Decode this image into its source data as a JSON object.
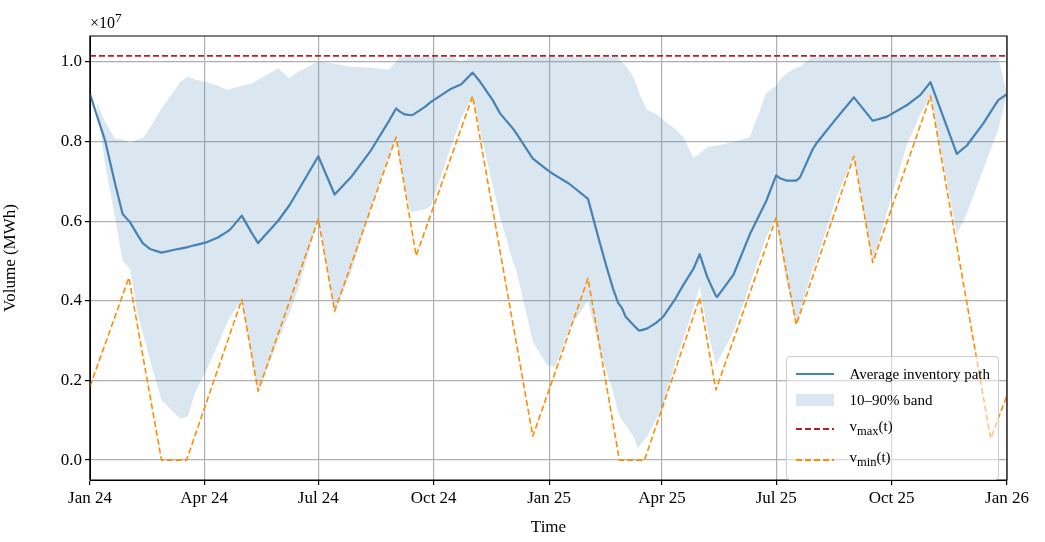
{
  "chart_data": {
    "type": "line",
    "xlabel": "Time",
    "ylabel": "Volume (MWh)",
    "annotations": [
      "×10$^{7}$",
      "10–90% band"
    ],
    "xlim": [
      "2024-01-01",
      "2026-01-01"
    ],
    "xticks": [
      {
        "value": "2024-01-01",
        "label": "Jan 24"
      },
      {
        "value": "2024-04-01",
        "label": "Apr 24"
      },
      {
        "value": "2024-07-01",
        "label": "Jul 24"
      },
      {
        "value": "2024-10-01",
        "label": "Oct 24"
      },
      {
        "value": "2025-01-01",
        "label": "Jan 25"
      },
      {
        "value": "2025-04-01",
        "label": "Apr 25"
      },
      {
        "value": "2025-07-01",
        "label": "Jul 25"
      },
      {
        "value": "2025-10-01",
        "label": "Oct 25"
      },
      {
        "value": "2026-01-01",
        "label": "Jan 26"
      }
    ],
    "ylim": [
      -0.05,
      1.065
    ],
    "yticks": [
      {
        "value": 0,
        "label": "0.0"
      },
      0.2,
      0.4,
      0.6,
      0.8,
      {
        "value": 1,
        "label": "1.0"
      }
    ],
    "grid": true,
    "legend": "bottom right",
    "marker": "none",
    "series": [
      {
        "name": "Average inventory path",
        "color": "#4682b4",
        "line_style": "solid",
        "x": [
          "2024-01-01",
          "2024-01-06",
          "2024-01-13",
          "2024-01-21",
          "2024-01-27",
          "2024-02-02",
          "2024-02-08",
          "2024-02-10",
          "2024-02-12",
          "2024-02-18",
          "2024-02-19",
          "2024-02-27",
          "2024-03-11",
          "2024-03-13",
          "2024-03-19",
          "2024-03-25",
          "2024-04-02",
          "2024-04-12",
          "2024-04-20",
          "2024-04-22",
          "2024-05-01",
          "2024-05-09",
          "2024-05-14",
          "2024-05-30",
          "2024-06-08",
          "2024-06-15",
          "2024-07-01",
          "2024-07-14",
          "2024-07-27",
          "2024-08-12",
          "2024-08-26",
          "2024-09-01",
          "2024-09-04",
          "2024-09-08",
          "2024-09-13",
          "2024-09-15",
          "2024-09-24",
          "2024-09-29",
          "2024-10-01",
          "2024-10-14",
          "2024-10-23",
          "2024-11-01",
          "2024-11-07",
          "2024-11-17",
          "2024-11-23",
          "2024-12-03",
          "2024-12-06",
          "2024-12-19",
          "2024-12-30",
          "2025-01-04",
          "2025-01-06",
          "2025-01-17",
          "2025-02-01",
          "2025-02-10",
          "2025-02-16",
          "2025-02-21",
          "2025-02-25",
          "2025-02-28",
          "2025-03-03",
          "2025-03-09",
          "2025-03-13",
          "2025-03-14",
          "2025-03-20",
          "2025-03-27",
          "2025-04-02",
          "2025-04-12",
          "2025-04-18",
          "2025-04-26",
          "2025-05-01",
          "2025-05-07",
          "2025-05-14",
          "2025-05-15",
          "2025-05-28",
          "2025-06-10",
          "2025-06-23",
          "2025-07-01",
          "2025-07-04",
          "2025-07-09",
          "2025-07-17",
          "2025-07-20",
          "2025-07-30",
          "2025-08-02",
          "2025-08-18",
          "2025-09-01",
          "2025-09-16",
          "2025-09-27",
          "2025-10-13",
          "2025-10-24",
          "2025-11-01",
          "2025-11-22",
          "2025-11-30",
          "2025-12-13",
          "2025-12-25",
          "2026-01-01"
        ],
        "values": [
          0.919,
          0.87,
          0.803,
          0.694,
          0.618,
          0.597,
          0.565,
          0.555,
          0.545,
          0.53,
          0.529,
          0.521,
          0.53,
          0.531,
          0.535,
          0.54,
          0.546,
          0.559,
          0.575,
          0.58,
          0.614,
          0.57,
          0.545,
          0.601,
          0.64,
          0.677,
          0.763,
          0.667,
          0.71,
          0.778,
          0.85,
          0.883,
          0.875,
          0.868,
          0.866,
          0.868,
          0.887,
          0.9,
          0.904,
          0.931,
          0.944,
          0.973,
          0.95,
          0.904,
          0.87,
          0.833,
          0.82,
          0.757,
          0.73,
          0.719,
          0.715,
          0.694,
          0.656,
          0.55,
          0.483,
          0.43,
          0.395,
          0.382,
          0.36,
          0.34,
          0.327,
          0.325,
          0.33,
          0.344,
          0.36,
          0.407,
          0.44,
          0.48,
          0.517,
          0.46,
          0.412,
          0.41,
          0.466,
          0.567,
          0.65,
          0.715,
          0.708,
          0.702,
          0.702,
          0.71,
          0.78,
          0.795,
          0.858,
          0.911,
          0.852,
          0.862,
          0.891,
          0.917,
          0.949,
          0.769,
          0.79,
          0.845,
          0.904,
          0.919
        ],
        "lower": [
          0.919,
          0.9,
          0.744,
          0.609,
          0.5,
          0.48,
          0.365,
          0.345,
          0.32,
          0.25,
          0.239,
          0.15,
          0.11,
          0.104,
          0.11,
          0.172,
          0.22,
          0.29,
          0.35,
          0.36,
          0.403,
          0.25,
          0.173,
          0.3,
          0.37,
          0.43,
          0.605,
          0.374,
          0.47,
          0.63,
          0.76,
          0.811,
          0.75,
          0.68,
          0.622,
          0.624,
          0.63,
          0.639,
          0.66,
          0.78,
          0.86,
          0.914,
          0.828,
          0.69,
          0.609,
          0.5,
          0.475,
          0.298,
          0.239,
          0.236,
          0.235,
          0.33,
          0.4,
          0.281,
          0.22,
          0.172,
          0.12,
          0.1,
          0.088,
          0.06,
          0.03,
          0.035,
          0.06,
          0.1,
          0.14,
          0.25,
          0.306,
          0.38,
          0.437,
          0.33,
          0.239,
          0.245,
          0.323,
          0.441,
          0.56,
          0.609,
          0.55,
          0.45,
          0.34,
          0.37,
          0.48,
          0.5,
          0.66,
          0.763,
          0.496,
          0.62,
          0.79,
          0.87,
          0.914,
          0.567,
          0.62,
          0.73,
          0.83,
          0.919
        ],
        "upper": [
          0.919,
          0.9,
          0.85,
          0.807,
          0.805,
          0.795,
          0.805,
          0.806,
          0.808,
          0.835,
          0.84,
          0.883,
          0.94,
          0.95,
          0.963,
          0.955,
          0.95,
          0.94,
          0.929,
          0.932,
          0.94,
          0.946,
          0.955,
          0.984,
          0.959,
          0.975,
          1.001,
          0.995,
          0.988,
          0.985,
          0.98,
          1.0,
          1.013,
          1.013,
          1.013,
          1.013,
          1.013,
          1.013,
          1.013,
          1.013,
          1.001,
          1.013,
          1.013,
          1.013,
          1.013,
          1.013,
          1.013,
          1.013,
          1.013,
          1.013,
          1.013,
          1.013,
          1.013,
          1.013,
          1.013,
          1.013,
          1.013,
          1.0,
          0.99,
          0.963,
          0.93,
          0.92,
          0.879,
          0.87,
          0.854,
          0.83,
          0.811,
          0.759,
          0.77,
          0.786,
          0.79,
          0.79,
          0.799,
          0.811,
          0.921,
          0.94,
          0.955,
          0.97,
          0.985,
          0.988,
          1.013,
          1.013,
          1.013,
          1.013,
          1.013,
          1.013,
          1.013,
          1.013,
          1.013,
          1.013,
          1.013,
          1.013,
          1.013,
          0.919
        ]
      },
      {
        "name": "v$_{max}$(t)",
        "color": "#b22222",
        "line_style": "dashed",
        "x": [
          "2024-01-01",
          "2026-01-01"
        ],
        "values": [
          1.015,
          1.015
        ]
      },
      {
        "name": "v$_{min}$(t)",
        "color": "#ff8c00",
        "line_style": "dashed",
        "x": [
          "2024-01-01",
          "2024-02-01",
          "2024-02-27",
          "2024-03-18",
          "2024-05-01",
          "2024-05-14",
          "2024-07-01",
          "2024-07-14",
          "2024-09-01",
          "2024-09-17",
          "2024-11-01",
          "2024-12-19",
          "2025-02-01",
          "2025-02-26",
          "2025-03-18",
          "2025-05-01",
          "2025-05-14",
          "2025-07-01",
          "2025-07-17",
          "2025-09-01",
          "2025-09-16",
          "2025-11-01",
          "2025-12-19",
          "2026-01-01"
        ],
        "values": [
          0.185,
          0.458,
          0,
          0,
          0.403,
          0.173,
          0.605,
          0.374,
          0.811,
          0.513,
          0.914,
          0.06,
          0.456,
          0,
          0,
          0.407,
          0.176,
          0.609,
          0.34,
          0.763,
          0.496,
          0.914,
          0.054,
          0.163
        ]
      }
    ]
  }
}
